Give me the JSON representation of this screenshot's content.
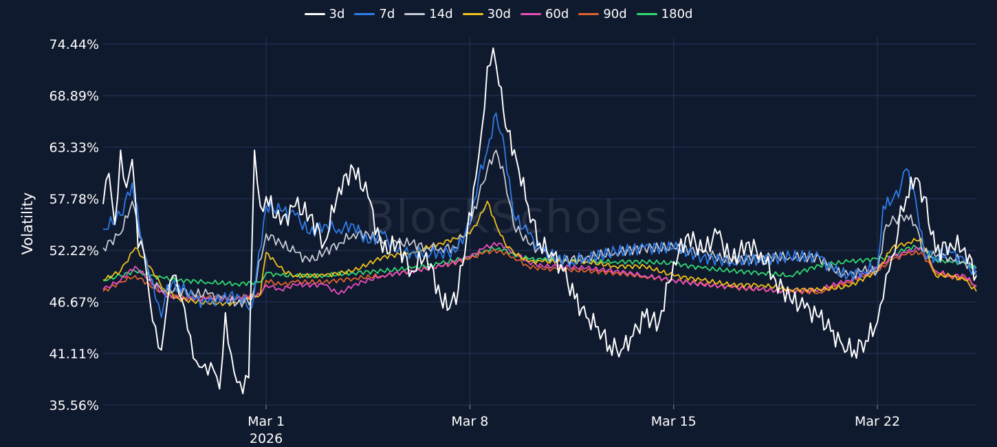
{
  "chart_data": {
    "type": "line",
    "title": "",
    "xlabel": "",
    "ylabel": "Volatility",
    "watermark": "BlockScholes",
    "ylim": [
      35.56,
      74.44
    ],
    "y_ticks": [
      "74.44%",
      "68.89%",
      "63.33%",
      "57.78%",
      "52.22%",
      "46.67%",
      "41.11%",
      "35.56%"
    ],
    "y_tick_values": [
      74.44,
      68.89,
      63.33,
      57.78,
      52.22,
      46.67,
      41.11,
      35.56
    ],
    "x_ticks": [
      {
        "label": "Mar 1",
        "sub": "2026",
        "day": 8
      },
      {
        "label": "Mar 8",
        "sub": "",
        "day": 15
      },
      {
        "label": "Mar 15",
        "sub": "",
        "day": 22
      },
      {
        "label": "Mar 22",
        "sub": "",
        "day": 29
      }
    ],
    "xlim_days": [
      2.4,
      32.4
    ],
    "grid": true,
    "legend_position": "top-center",
    "background": "#101a2e",
    "grid_color": "#26375a",
    "series": [
      {
        "name": "3d",
        "color": "#ffffff",
        "x": [
          2.4,
          2.6,
          2.8,
          3.0,
          3.2,
          3.4,
          3.6,
          3.8,
          4.0,
          4.2,
          4.4,
          4.6,
          4.8,
          5.0,
          5.2,
          5.4,
          5.6,
          5.8,
          6.0,
          6.2,
          6.4,
          6.6,
          6.8,
          7.0,
          7.2,
          7.4,
          7.6,
          7.8,
          8.0,
          8.5,
          9.0,
          9.5,
          10.0,
          10.5,
          11.0,
          11.5,
          12.0,
          12.5,
          13.0,
          13.5,
          14.0,
          14.3,
          14.6,
          14.9,
          15.2,
          15.4,
          15.6,
          15.8,
          16.0,
          16.3,
          16.6,
          17.0,
          17.4,
          17.8,
          18.2,
          18.6,
          19.0,
          19.4,
          19.8,
          20.2,
          20.6,
          21.0,
          21.5,
          22.0,
          22.5,
          23.0,
          23.5,
          24.0,
          24.5,
          25.0,
          25.5,
          26.0,
          26.5,
          27.0,
          27.4,
          27.8,
          28.2,
          28.6,
          29.0,
          29.2,
          29.4,
          29.6,
          29.8,
          30.0,
          30.3,
          30.6,
          31.0,
          31.5,
          32.0,
          32.4
        ],
        "y": [
          57.2,
          60.5,
          55,
          63,
          59,
          62,
          52.5,
          52,
          47,
          44,
          41.5,
          46.5,
          49.5,
          47.5,
          46,
          43,
          40.3,
          39.6,
          38.8,
          39.3,
          37.3,
          45.5,
          41,
          38,
          36.8,
          38.5,
          63,
          57,
          58,
          55,
          57,
          56,
          53,
          59,
          61,
          58,
          52,
          53,
          50,
          52,
          47,
          46,
          48,
          54,
          60,
          65,
          72,
          74,
          70,
          65,
          62,
          57,
          53,
          52,
          50,
          47,
          45,
          44,
          42,
          41.5,
          43,
          45,
          44.5,
          51,
          54,
          52,
          54,
          51,
          53,
          52,
          49,
          47,
          46,
          45,
          43.5,
          42,
          41.5,
          42.5,
          44.5,
          47,
          50,
          52,
          57,
          58,
          60,
          58,
          52,
          53,
          52.5,
          49.5
        ]
      },
      {
        "name": "7d",
        "color": "#2f7dea",
        "x": [
          2.4,
          3.0,
          3.4,
          3.8,
          4.0,
          4.2,
          4.4,
          4.6,
          5.0,
          5.5,
          6.0,
          6.5,
          7.0,
          7.5,
          8.0,
          8.5,
          9.0,
          9.5,
          10.0,
          10.5,
          11.0,
          11.5,
          12.0,
          12.5,
          13.0,
          13.5,
          14.0,
          14.5,
          15.0,
          15.3,
          15.6,
          15.9,
          16.2,
          16.5,
          17.0,
          17.5,
          18.0,
          18.5,
          19.0,
          20.0,
          21.0,
          22.0,
          23.0,
          24.0,
          25.0,
          26.0,
          27.0,
          27.5,
          28.0,
          28.5,
          29.0,
          29.2,
          29.5,
          29.8,
          30.0,
          30.3,
          30.6,
          31.0,
          31.5,
          32.0,
          32.4
        ],
        "y": [
          54.5,
          56,
          59.5,
          52,
          49.5,
          47,
          45,
          48.5,
          48.5,
          47,
          46.5,
          47,
          47.5,
          46,
          57,
          56.5,
          56,
          54,
          55,
          54.5,
          55,
          53,
          54,
          52,
          52,
          52,
          52,
          52,
          55,
          60,
          63,
          67,
          63,
          56,
          54,
          52,
          51.5,
          51,
          51.5,
          52,
          52.5,
          52.5,
          51.5,
          51,
          51.3,
          51.5,
          51.5,
          50,
          49.5,
          50,
          50.5,
          57,
          57.5,
          59,
          61,
          58,
          52,
          51.5,
          52,
          51,
          49.5
        ]
      },
      {
        "name": "14d",
        "color": "#c8ccd6",
        "x": [
          2.4,
          3.0,
          3.4,
          3.8,
          4.0,
          4.4,
          5.0,
          5.5,
          6.0,
          6.5,
          7.0,
          7.5,
          8.0,
          8.5,
          9.0,
          9.5,
          10.0,
          10.5,
          11.0,
          11.5,
          12.0,
          12.5,
          13.0,
          13.5,
          14.0,
          14.5,
          15.0,
          15.3,
          15.6,
          15.9,
          16.2,
          16.5,
          17.0,
          17.5,
          18.0,
          19.0,
          20.0,
          21.0,
          22.0,
          23.0,
          24.0,
          25.0,
          26.0,
          27.0,
          27.5,
          28.0,
          28.5,
          29.0,
          29.3,
          29.6,
          30.0,
          30.3,
          30.6,
          31.0,
          31.5,
          32.0,
          32.4
        ],
        "y": [
          52.5,
          54,
          57.5,
          52,
          49,
          48,
          48,
          47.5,
          47.5,
          47,
          46.5,
          47,
          54,
          53,
          52,
          51,
          52,
          53,
          54,
          54,
          53,
          53,
          53,
          52.5,
          52.5,
          52.5,
          55,
          58,
          61,
          63,
          60,
          55,
          53,
          52,
          51,
          51.5,
          52,
          52.5,
          52.5,
          52,
          51,
          51.5,
          51.5,
          51.5,
          50,
          49.5,
          50,
          50,
          55,
          55.5,
          56,
          55,
          52,
          51.5,
          51.5,
          51,
          50
        ]
      },
      {
        "name": "30d",
        "color": "#f2c21c",
        "x": [
          2.4,
          3.0,
          3.5,
          4.0,
          4.5,
          5.0,
          6.0,
          7.0,
          7.8,
          8.0,
          8.3,
          8.6,
          9.0,
          10.0,
          11.0,
          12.0,
          13.0,
          14.0,
          14.5,
          15.0,
          15.3,
          15.6,
          15.9,
          16.2,
          16.5,
          17.0,
          17.5,
          18.0,
          19.0,
          20.0,
          21.0,
          22.0,
          23.0,
          24.0,
          25.0,
          26.0,
          27.0,
          28.0,
          29.0,
          29.5,
          30.0,
          30.5,
          31.0,
          31.5,
          32.0,
          32.4
        ],
        "y": [
          49,
          50,
          52.5,
          50.5,
          48,
          47,
          46.5,
          46.5,
          47.5,
          52,
          51,
          50,
          49.5,
          49.5,
          50,
          51.5,
          52,
          53,
          53.5,
          54,
          55.5,
          57.5,
          55,
          53,
          52,
          51,
          51,
          51,
          51,
          50.5,
          50.5,
          49.5,
          49,
          48.5,
          48.5,
          48,
          48,
          48.3,
          50,
          52.5,
          53,
          53.5,
          49.5,
          49.5,
          49,
          47.8
        ]
      },
      {
        "name": "60d",
        "color": "#ea4fbf",
        "x": [
          2.4,
          3.0,
          3.5,
          4.0,
          4.5,
          5.0,
          6.0,
          7.0,
          7.8,
          8.0,
          8.5,
          9.0,
          10.0,
          10.5,
          11.0,
          12.0,
          13.0,
          14.0,
          15.0,
          15.5,
          16.0,
          16.5,
          17.0,
          17.5,
          18.0,
          19.0,
          20.0,
          21.0,
          22.0,
          23.0,
          24.0,
          25.0,
          26.0,
          27.0,
          28.0,
          29.0,
          29.5,
          30.0,
          30.5,
          31.0,
          31.5,
          32.0,
          32.4
        ],
        "y": [
          48,
          49,
          50.5,
          49,
          47.5,
          47,
          47,
          47,
          47.5,
          48.5,
          48,
          48.5,
          48.5,
          47.5,
          48.5,
          49.5,
          50,
          50.5,
          51.5,
          52.5,
          53,
          52,
          51,
          50.5,
          50.5,
          50.3,
          50,
          49.5,
          49,
          48.5,
          48.3,
          48,
          47.8,
          48,
          49,
          50.3,
          51.5,
          52,
          52.5,
          50,
          49.5,
          49.5,
          48.3
        ]
      },
      {
        "name": "90d",
        "color": "#e0632c",
        "x": [
          2.4,
          3.0,
          3.5,
          4.0,
          4.5,
          5.0,
          6.0,
          7.0,
          7.8,
          8.0,
          8.5,
          9.0,
          10.0,
          11.0,
          12.0,
          13.0,
          14.0,
          15.0,
          15.5,
          16.0,
          16.5,
          17.0,
          17.5,
          18.0,
          19.0,
          20.0,
          21.0,
          22.0,
          23.0,
          24.0,
          25.0,
          26.0,
          27.0,
          28.0,
          29.0,
          29.5,
          30.0,
          30.5,
          31.0,
          31.5,
          32.0,
          32.4
        ],
        "y": [
          47.8,
          48.8,
          49.5,
          48.5,
          47.5,
          47.2,
          47.2,
          47.2,
          47.4,
          49,
          48.5,
          48.8,
          48.8,
          49.2,
          49.5,
          50,
          50.5,
          51.3,
          52,
          52.2,
          51.5,
          50.5,
          50.2,
          50.2,
          50,
          49.8,
          49.4,
          49,
          48.6,
          48.2,
          48,
          47.8,
          47.7,
          48.8,
          50,
          51.2,
          51.8,
          52,
          49.8,
          49.4,
          49.2,
          48.4
        ]
      },
      {
        "name": "180d",
        "color": "#32d972",
        "x": [
          2.4,
          3.0,
          3.5,
          4.0,
          4.5,
          5.0,
          6.0,
          7.0,
          7.8,
          8.0,
          8.5,
          9.0,
          10.0,
          11.0,
          12.0,
          13.0,
          14.0,
          15.0,
          15.5,
          16.0,
          16.5,
          17.0,
          17.5,
          18.0,
          19.0,
          20.0,
          21.0,
          22.0,
          23.0,
          24.0,
          25.0,
          26.0,
          27.0,
          28.0,
          29.0,
          29.5,
          30.0,
          30.5,
          31.0,
          31.5,
          32.0,
          32.4
        ],
        "y": [
          49,
          49.5,
          50,
          49.5,
          49.2,
          49,
          48.8,
          48.6,
          48.8,
          49.8,
          49.5,
          49.5,
          49.5,
          49.8,
          50,
          50.3,
          50.8,
          51.5,
          52.2,
          52.5,
          51.8,
          51.3,
          51.2,
          51.2,
          51,
          51,
          51,
          50.8,
          50.3,
          50,
          49.8,
          49.5,
          50.6,
          51,
          51.3,
          51.5,
          52.5,
          52.6,
          51.2,
          51,
          50.8,
          50.3
        ]
      }
    ]
  }
}
